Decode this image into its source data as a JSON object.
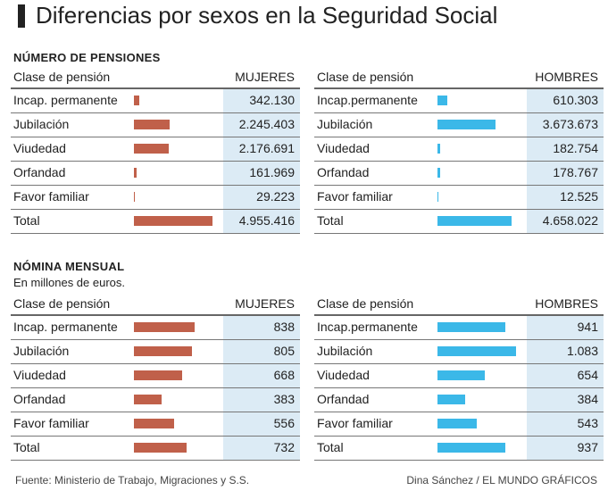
{
  "title": "Diferencias por sexos en la Seguridad Social",
  "footer": {
    "source": "Fuente: Ministerio de Trabajo, Migraciones y S.S.",
    "credit": "Dina Sánchez / EL MUNDO GRÁFICOS"
  },
  "colors": {
    "mujeres": "#c0604a",
    "hombres": "#3bb8e8",
    "value_bg": "#dcebf5"
  },
  "chart_data": [
    {
      "type": "table",
      "title": "NÚMERO DE PENSIONES",
      "subtitle": "",
      "column_header": "Clase de pensión",
      "categories": [
        "Incap. permanente",
        "Jubilación",
        "Viudedad",
        "Orfandad",
        "Favor familiar",
        "Total"
      ],
      "categories_hombres": [
        "Incap.permanente",
        "Jubilación",
        "Viudedad",
        "Orfandad",
        "Favor familiar",
        "Total"
      ],
      "series": [
        {
          "name": "MUJERES",
          "values": [
            342130,
            2245403,
            2176691,
            161969,
            29223,
            4955416
          ],
          "labels": [
            "342.130",
            "2.245.403",
            "2.176.691",
            "161.969",
            "29.223",
            "4.955.416"
          ]
        },
        {
          "name": "HOMBRES",
          "values": [
            610303,
            3673673,
            182754,
            178767,
            12525,
            4658022
          ],
          "labels": [
            "610.303",
            "3.673.673",
            "182.754",
            "178.767",
            "12.525",
            "4.658.022"
          ]
        }
      ]
    },
    {
      "type": "table",
      "title": "NÓMINA MENSUAL",
      "subtitle": "En millones de euros.",
      "column_header": "Clase de pensión",
      "categories": [
        "Incap. permanente",
        "Jubilación",
        "Viudedad",
        "Orfandad",
        "Favor familiar",
        "Total"
      ],
      "categories_hombres": [
        "Incap.permanente",
        "Jubilación",
        "Viudedad",
        "Orfandad",
        "Favor familiar",
        "Total"
      ],
      "series": [
        {
          "name": "MUJERES",
          "values": [
            838,
            805,
            668,
            383,
            556,
            732
          ],
          "labels": [
            "838",
            "805",
            "668",
            "383",
            "556",
            "732"
          ]
        },
        {
          "name": "HOMBRES",
          "values": [
            941,
            1083,
            654,
            384,
            543,
            937
          ],
          "labels": [
            "941",
            "1.083",
            "654",
            "384",
            "543",
            "937"
          ]
        }
      ]
    }
  ]
}
